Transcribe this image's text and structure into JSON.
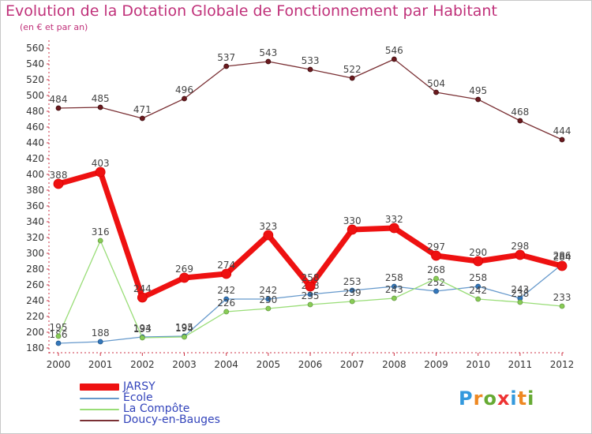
{
  "chart_data": {
    "type": "line",
    "title": "Evolution de la Dotation Globale de Fonctionnement par Habitant",
    "subtitle": "(en € et par an)",
    "xlabel": "",
    "ylabel": "",
    "categories": [
      "2000",
      "2001",
      "2002",
      "2003",
      "2004",
      "2005",
      "2006",
      "2007",
      "2008",
      "2009",
      "2010",
      "2011",
      "2012"
    ],
    "ylim": [
      180,
      560
    ],
    "yticks": [
      180,
      200,
      220,
      240,
      260,
      280,
      300,
      320,
      340,
      360,
      380,
      400,
      420,
      440,
      460,
      480,
      500,
      520,
      540,
      560
    ],
    "grid": false,
    "legend_position": "bottom-left",
    "series": [
      {
        "name": "Doucy-en-Bauges",
        "color": "#7a3034",
        "values": [
          484,
          485,
          471,
          496,
          537,
          543,
          533,
          522,
          546,
          504,
          495,
          468,
          444
        ]
      },
      {
        "name": "École",
        "color": "#6699cc",
        "values": [
          186,
          188,
          194,
          195,
          242,
          242,
          248,
          253,
          258,
          252,
          258,
          243,
          286
        ]
      },
      {
        "name": "La Compôte",
        "color": "#99dd77",
        "values": [
          195,
          316,
          193,
          194,
          226,
          230,
          235,
          239,
          243,
          268,
          242,
          238,
          233
        ]
      },
      {
        "name": "JARSY",
        "color": "#ee1111",
        "values": [
          388,
          403,
          244,
          269,
          274,
          323,
          258,
          330,
          332,
          297,
          290,
          298,
          284
        ]
      }
    ]
  },
  "legend": [
    {
      "name": "JARSY",
      "color": "#ee1111"
    },
    {
      "name": "École",
      "color": "#6699cc"
    },
    {
      "name": "La Compôte",
      "color": "#99dd77"
    },
    {
      "name": "Doucy-en-Bauges",
      "color": "#7a3034"
    }
  ],
  "logo": {
    "letters": [
      "P",
      "r",
      "o",
      "x",
      "i",
      "t",
      "i"
    ],
    "colors": [
      "#3399dd",
      "#ee8822",
      "#66aa33",
      "#ee3333",
      "#3399dd",
      "#ee8822",
      "#66aa33"
    ]
  }
}
